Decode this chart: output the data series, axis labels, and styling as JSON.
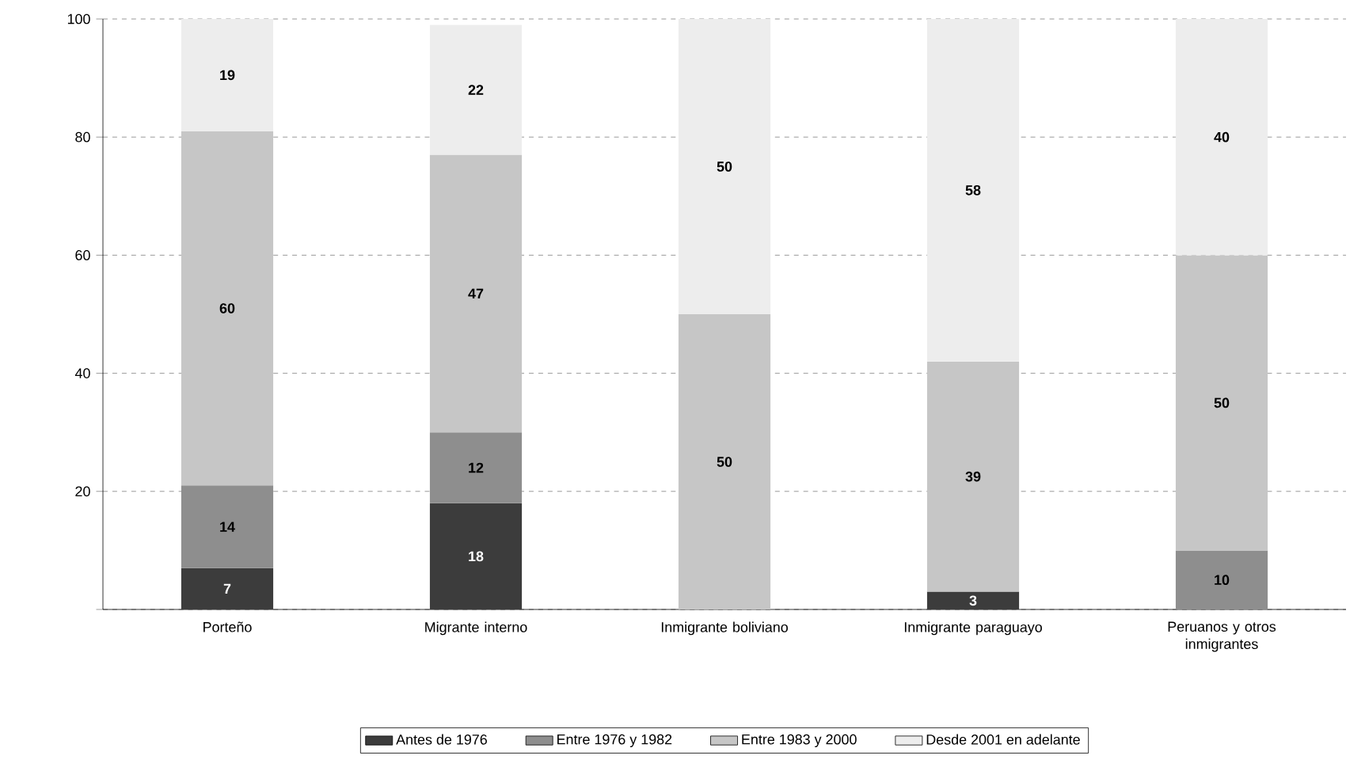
{
  "chart_data": {
    "type": "bar",
    "stacked": true,
    "categories": [
      "Porteño",
      "Migrante interno",
      "Inmigrante boliviano",
      "Inmigrante paraguayo",
      "Peruanos y otros inmigrantes"
    ],
    "series": [
      {
        "name": "Antes de 1976",
        "color": "#3c3c3c",
        "values": [
          7,
          18,
          null,
          3,
          null
        ]
      },
      {
        "name": "Entre 1976 y 1982",
        "color": "#8e8e8e",
        "values": [
          14,
          12,
          null,
          null,
          10
        ]
      },
      {
        "name": "Entre 1983 y 2000",
        "color": "#c6c6c6",
        "values": [
          60,
          47,
          50,
          39,
          50
        ]
      },
      {
        "name": "Desde 2001 en adelante",
        "color": "#ededed",
        "values": [
          19,
          22,
          50,
          58,
          40
        ]
      }
    ],
    "ylim": [
      0,
      100
    ],
    "yticks": [
      {
        "value": 0,
        "label": null
      },
      20,
      40,
      60,
      80,
      100
    ],
    "grid": "y",
    "legend": "bottom",
    "data_labels": true
  }
}
